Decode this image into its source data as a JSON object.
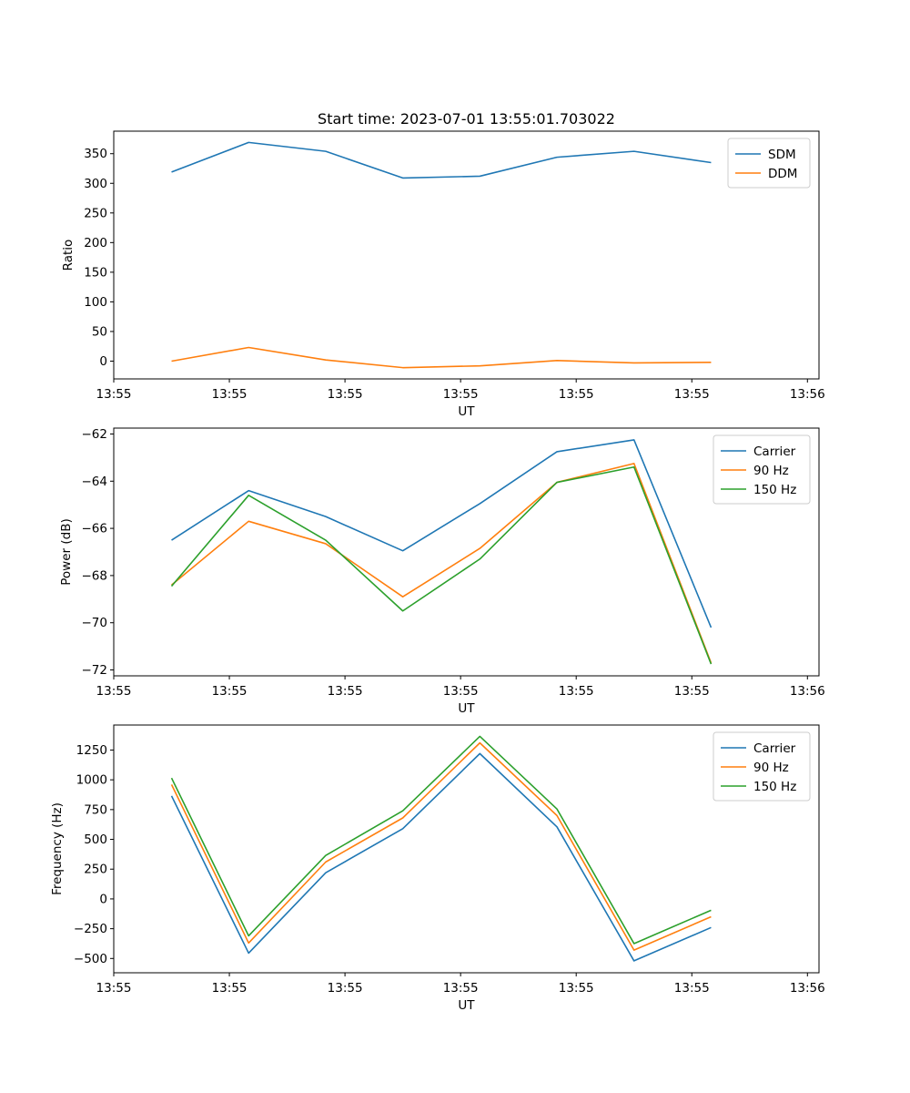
{
  "chart_data": [
    {
      "type": "line",
      "title": "Start time: 2023-07-01 13:55:01.703022",
      "xlabel": "UT",
      "ylabel": "Ratio",
      "x": [
        0,
        1,
        2,
        3,
        4,
        5,
        6,
        7
      ],
      "xlim": [
        -0.75,
        8.4
      ],
      "ylim": [
        -30,
        388
      ],
      "yticks": [
        0,
        50,
        100,
        150,
        200,
        250,
        300,
        350
      ],
      "xticks": [
        -0.75,
        0.75,
        2.25,
        3.75,
        5.25,
        6.75,
        8.25
      ],
      "xtick_labels": [
        "13:55",
        "13:55",
        "13:55",
        "13:55",
        "13:55",
        "13:55",
        "13:56"
      ],
      "legend": "upper-right",
      "series": [
        {
          "name": "SDM",
          "color": "#1f77b4",
          "values": [
            319,
            369,
            354,
            309,
            312,
            344,
            354,
            335
          ]
        },
        {
          "name": "DDM",
          "color": "#ff7f0e",
          "values": [
            0,
            23,
            2,
            -11,
            -8,
            1,
            -3,
            -2
          ]
        }
      ]
    },
    {
      "type": "line",
      "title": "",
      "xlabel": "UT",
      "ylabel": "Power (dB)",
      "x": [
        0,
        1,
        2,
        3,
        4,
        5,
        6,
        7
      ],
      "xlim": [
        -0.75,
        8.4
      ],
      "ylim": [
        -72.25,
        -61.75
      ],
      "yticks": [
        -72,
        -70,
        -68,
        -66,
        -64,
        -62
      ],
      "xticks": [
        -0.75,
        0.75,
        2.25,
        3.75,
        5.25,
        6.75,
        8.25
      ],
      "xtick_labels": [
        "13:55",
        "13:55",
        "13:55",
        "13:55",
        "13:55",
        "13:55",
        "13:56"
      ],
      "legend": "upper-right",
      "series": [
        {
          "name": "Carrier",
          "color": "#1f77b4",
          "values": [
            -66.5,
            -64.4,
            -65.5,
            -66.95,
            -64.95,
            -62.75,
            -62.25,
            -70.2
          ]
        },
        {
          "name": "90 Hz",
          "color": "#ff7f0e",
          "values": [
            -68.4,
            -65.7,
            -66.65,
            -68.9,
            -66.85,
            -64.05,
            -63.25,
            -71.7
          ]
        },
        {
          "name": "150 Hz",
          "color": "#2ca02c",
          "values": [
            -68.45,
            -64.6,
            -66.5,
            -69.5,
            -67.3,
            -64.05,
            -63.4,
            -71.75
          ]
        }
      ]
    },
    {
      "type": "line",
      "title": "",
      "xlabel": "UT",
      "ylabel": "Frequency (Hz)",
      "x": [
        0,
        1,
        2,
        3,
        4,
        5,
        6,
        7
      ],
      "xlim": [
        -0.75,
        8.4
      ],
      "ylim": [
        -620,
        1460
      ],
      "yticks": [
        -500,
        -250,
        0,
        250,
        500,
        750,
        1000,
        1250
      ],
      "xticks": [
        -0.75,
        0.75,
        2.25,
        3.75,
        5.25,
        6.75,
        8.25
      ],
      "xtick_labels": [
        "13:55",
        "13:55",
        "13:55",
        "13:55",
        "13:55",
        "13:55",
        "13:56"
      ],
      "legend": "upper-right",
      "series": [
        {
          "name": "Carrier",
          "color": "#1f77b4",
          "values": [
            865,
            -455,
            220,
            590,
            1220,
            605,
            -520,
            -240
          ]
        },
        {
          "name": "90 Hz",
          "color": "#ff7f0e",
          "values": [
            960,
            -370,
            310,
            680,
            1310,
            700,
            -430,
            -150
          ]
        },
        {
          "name": "150 Hz",
          "color": "#2ca02c",
          "values": [
            1015,
            -310,
            365,
            740,
            1365,
            755,
            -375,
            -95
          ]
        }
      ]
    }
  ]
}
